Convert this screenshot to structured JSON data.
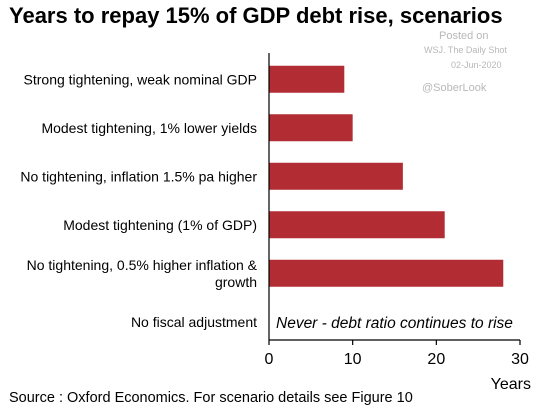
{
  "title": "Years to repay 15% of GDP debt rise, scenarios",
  "watermark": {
    "line1": "Posted on",
    "line2": "WSJ. The Daily Shot",
    "line3": "02-Jun-2020",
    "handle": "@SoberLook"
  },
  "source": "Source : Oxford Economics. For scenario details see Figure 10",
  "chart_data": {
    "type": "bar",
    "orientation": "horizontal",
    "categories": [
      [
        "Strong tightening, weak nominal GDP"
      ],
      [
        "Modest tightening, 1% lower yields"
      ],
      [
        "No tightening, inflation 1.5% pa higher"
      ],
      [
        "Modest tightening (1% of GDP)"
      ],
      [
        "No tightening, 0.5% higher inflation &",
        "growth"
      ],
      [
        "No fiscal adjustment"
      ]
    ],
    "values": [
      9,
      10,
      16,
      21,
      28,
      null
    ],
    "annotation": "Never - debt ratio continues to rise",
    "xlabel": "Years",
    "xlim": [
      0,
      30
    ],
    "xticks": [
      0,
      10,
      20,
      30
    ],
    "bar_color": "#b22d33",
    "grid": false
  }
}
